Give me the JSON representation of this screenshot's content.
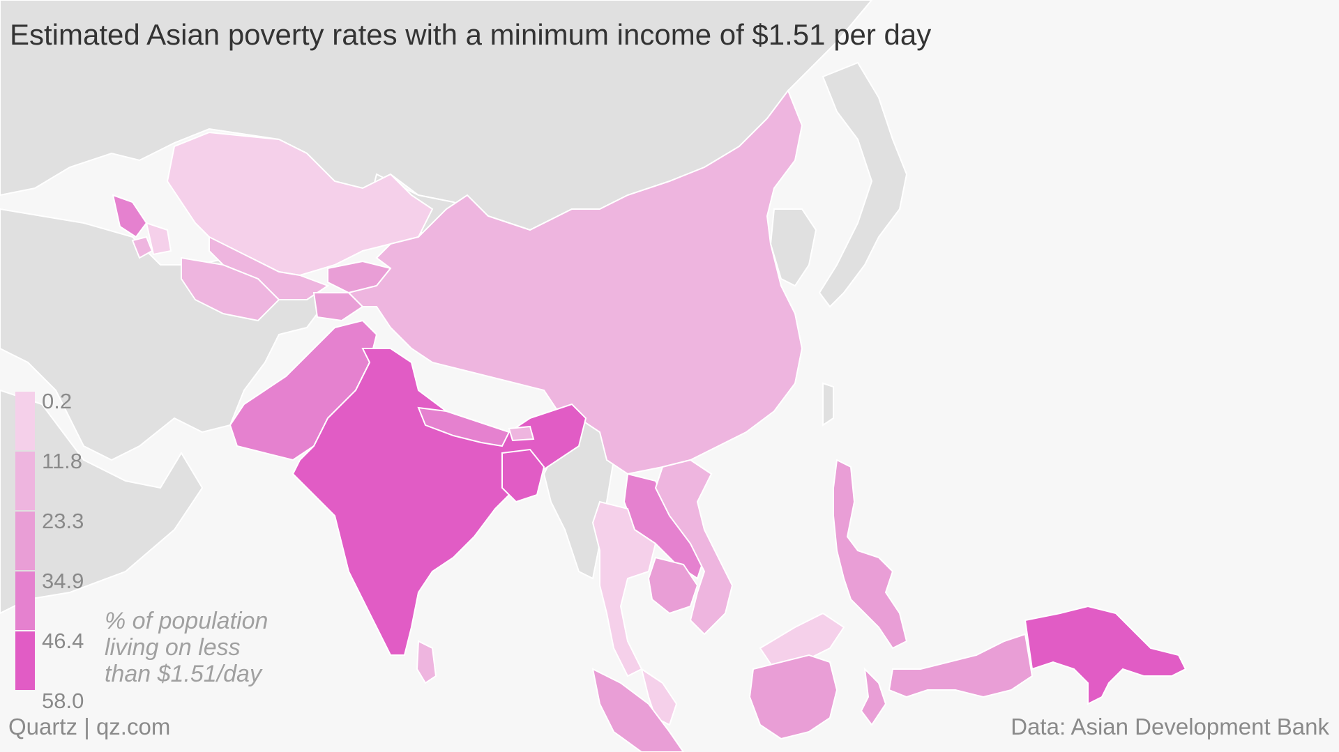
{
  "title": "Estimated Asian poverty rates with a minimum income of $1.51 per day",
  "legend": {
    "breaks": [
      "0.2",
      "11.8",
      "23.3",
      "34.9",
      "46.4",
      "58.0"
    ],
    "colors": [
      "#f5d0ea",
      "#eeb5df",
      "#e99ed6",
      "#e581cf",
      "#e15cc5"
    ],
    "caption": [
      "% of population",
      "living on less",
      "than $1.51/day"
    ]
  },
  "colors": {
    "ocean": "#f7f7f7",
    "land_no_data": "#e0e0e0",
    "land_border": "#ffffff"
  },
  "regions": [
    {
      "name": "Kazakhstan",
      "poverty_bin": 0
    },
    {
      "name": "Georgia",
      "poverty_bin": 3
    },
    {
      "name": "Armenia",
      "poverty_bin": 1
    },
    {
      "name": "Azerbaijan",
      "poverty_bin": 0
    },
    {
      "name": "Turkmenistan",
      "poverty_bin": 1
    },
    {
      "name": "Uzbekistan",
      "poverty_bin": 1
    },
    {
      "name": "Kyrgyzstan",
      "poverty_bin": 2
    },
    {
      "name": "Tajikistan",
      "poverty_bin": 2
    },
    {
      "name": "China",
      "poverty_bin": 1
    },
    {
      "name": "Pakistan",
      "poverty_bin": 3
    },
    {
      "name": "India",
      "poverty_bin": 4
    },
    {
      "name": "Nepal",
      "poverty_bin": 3
    },
    {
      "name": "Bhutan",
      "poverty_bin": 1
    },
    {
      "name": "Bangladesh",
      "poverty_bin": 4
    },
    {
      "name": "Sri Lanka",
      "poverty_bin": 1
    },
    {
      "name": "Laos",
      "poverty_bin": 3
    },
    {
      "name": "Vietnam",
      "poverty_bin": 1
    },
    {
      "name": "Thailand",
      "poverty_bin": 0
    },
    {
      "name": "Cambodia",
      "poverty_bin": 2
    },
    {
      "name": "Malaysia",
      "poverty_bin": 0
    },
    {
      "name": "Philippines",
      "poverty_bin": 2
    },
    {
      "name": "Indonesia",
      "poverty_bin": 2
    },
    {
      "name": "Papua New Guinea",
      "poverty_bin": 4
    }
  ],
  "footer": {
    "left": "Quartz | qz.com",
    "right": "Data: Asian Development Bank"
  }
}
